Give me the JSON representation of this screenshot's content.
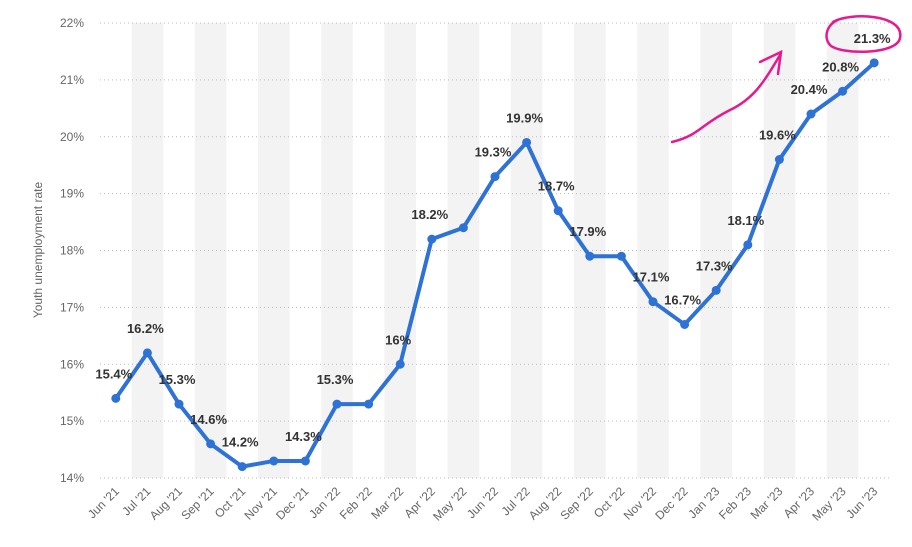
{
  "chart_data": {
    "type": "line",
    "y_label": "Youth unemployment rate",
    "categories": [
      "Jun '21",
      "Jul '21",
      "Aug '21",
      "Sep '21",
      "Oct '21",
      "Nov '21",
      "Dec '21",
      "Jan '22",
      "Feb '22",
      "Mar '22",
      "Apr '22",
      "May '22",
      "Jun '22",
      "Jul '22",
      "Aug '22",
      "Sep '22",
      "Oct '22",
      "Nov '22",
      "Dec '22",
      "Jan '23",
      "Feb '23",
      "Mar '23",
      "Apr '23",
      "May '23",
      "Jun '23"
    ],
    "values": [
      15.4,
      16.2,
      15.3,
      14.6,
      14.2,
      14.3,
      14.3,
      15.3,
      15.3,
      16,
      18.2,
      18.4,
      19.3,
      19.9,
      18.7,
      17.9,
      17.9,
      17.1,
      16.7,
      17.3,
      18.1,
      19.6,
      20.4,
      20.8,
      21.3
    ],
    "value_labels": [
      "15.4%",
      "16.2%",
      "15.3%",
      "14.6%",
      "14.2%",
      null,
      "14.3%",
      "15.3%",
      null,
      "16%",
      "18.2%",
      null,
      "19.3%",
      "19.9%",
      "18.7%",
      "17.9%",
      null,
      "17.1%",
      "16.7%",
      "17.3%",
      "18.1%",
      "19.6%",
      "20.4%",
      "20.8%",
      "21.3%"
    ],
    "color": "#2f72d6",
    "ylim": [
      14,
      22
    ],
    "yticks": [
      {
        "value": 14,
        "label": "14%"
      },
      {
        "value": 15,
        "label": "15%"
      },
      {
        "value": 16,
        "label": "16%"
      },
      {
        "value": 17,
        "label": "17%"
      },
      {
        "value": 18,
        "label": "18%"
      },
      {
        "value": 19,
        "label": "19%"
      },
      {
        "value": 20,
        "label": "20%"
      },
      {
        "value": 21,
        "label": "21%"
      },
      {
        "value": 22,
        "label": "22%"
      }
    ],
    "grid": true
  }
}
